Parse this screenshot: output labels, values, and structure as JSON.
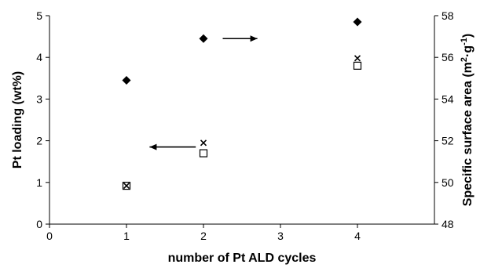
{
  "chart_data": {
    "type": "scatter",
    "xlabel": "number of Pt ALD cycles",
    "ylabel": "Pt loading (wt%)",
    "y2label_main": "Specific surface area (m",
    "y2label_sup1": "2",
    "y2label_dot": "·g",
    "y2label_sup2": "-1",
    "y2label_end": ")",
    "xlim": [
      0,
      5
    ],
    "ylim": [
      0,
      5
    ],
    "y2lim": [
      48,
      58
    ],
    "xticks": [
      "0",
      "1",
      "2",
      "3",
      "4"
    ],
    "yticks": [
      "0",
      "1",
      "2",
      "3",
      "4",
      "5"
    ],
    "y2ticks": [
      "48",
      "50",
      "52",
      "54",
      "56",
      "58"
    ],
    "series": [
      {
        "axis": "right",
        "marker": "diamond",
        "x": [
          1,
          2,
          4
        ],
        "y": [
          54.9,
          56.9,
          57.7
        ]
      },
      {
        "axis": "left",
        "marker": "x",
        "x": [
          1,
          2,
          4
        ],
        "y": [
          0.92,
          1.95,
          3.98
        ]
      },
      {
        "axis": "left",
        "marker": "square",
        "x": [
          1,
          2,
          4
        ],
        "y": [
          0.92,
          1.7,
          3.8
        ]
      }
    ],
    "annotations": [
      {
        "type": "arrow",
        "direction": "right",
        "x_from": 2.25,
        "x_to": 2.7,
        "y": 56.9,
        "axis": "right"
      },
      {
        "type": "arrow",
        "direction": "left",
        "x_from": 1.9,
        "x_to": 1.3,
        "y": 1.85,
        "axis": "left"
      }
    ],
    "grid": false
  }
}
